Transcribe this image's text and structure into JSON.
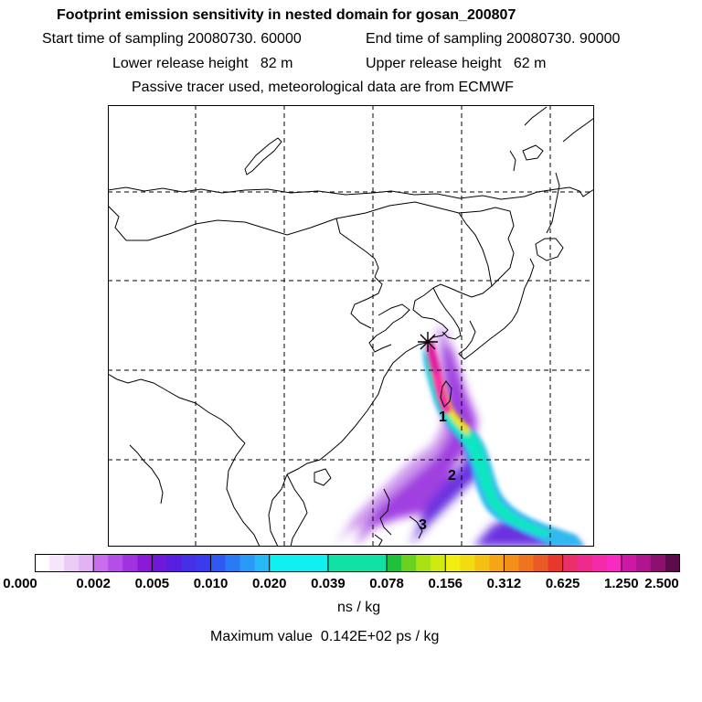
{
  "header": {
    "title": "Footprint emission sensitivity in nested domain for gosan_200807",
    "start_label": "Start time of sampling 20080730. 60000",
    "end_label": "End time of sampling 20080730. 90000",
    "lower_label": "Lower release height   82 m",
    "upper_label": "Upper release height   62 m",
    "tracer_label": "Passive tracer used, meteorological data are from ECMWF"
  },
  "map": {
    "markers": [
      {
        "label": "1"
      },
      {
        "label": "2"
      },
      {
        "label": "3"
      }
    ],
    "release_symbol": "asterisk-icon"
  },
  "colorbar": {
    "tick_labels": [
      "0.000",
      "0.002",
      "0.005",
      "0.010",
      "0.020",
      "0.039",
      "0.078",
      "0.156",
      "0.312",
      "0.625",
      "1.250",
      "2.500"
    ],
    "colors": [
      "#ffffff",
      "#f6e6fb",
      "#ecccf7",
      "#e2b3f3",
      "#c86eec",
      "#b34ee6",
      "#a032e0",
      "#8a1ad8",
      "#7018d8",
      "#5a1ee0",
      "#4630e6",
      "#3a3aee",
      "#2f5af2",
      "#2a7af4",
      "#2a9af6",
      "#28b8f6",
      "#10f0f0",
      "#10f0f0",
      "#10f0f0",
      "#10f0f0",
      "#10e2a6",
      "#10e2a6",
      "#10e2a6",
      "#10e2a6",
      "#20c03c",
      "#6ad21e",
      "#a8e214",
      "#d0ea10",
      "#f0ee10",
      "#f2dc10",
      "#f4c012",
      "#f6a614",
      "#f29018",
      "#ee7420",
      "#ea5a26",
      "#e8382c",
      "#ec2e6a",
      "#f02a8c",
      "#f42aa8",
      "#f82ac0",
      "#d018a8",
      "#b0148e",
      "#8c1070",
      "#5c0a4a"
    ],
    "units": "ns / kg",
    "maximum": "Maximum value  0.142E+02 ps / kg"
  }
}
